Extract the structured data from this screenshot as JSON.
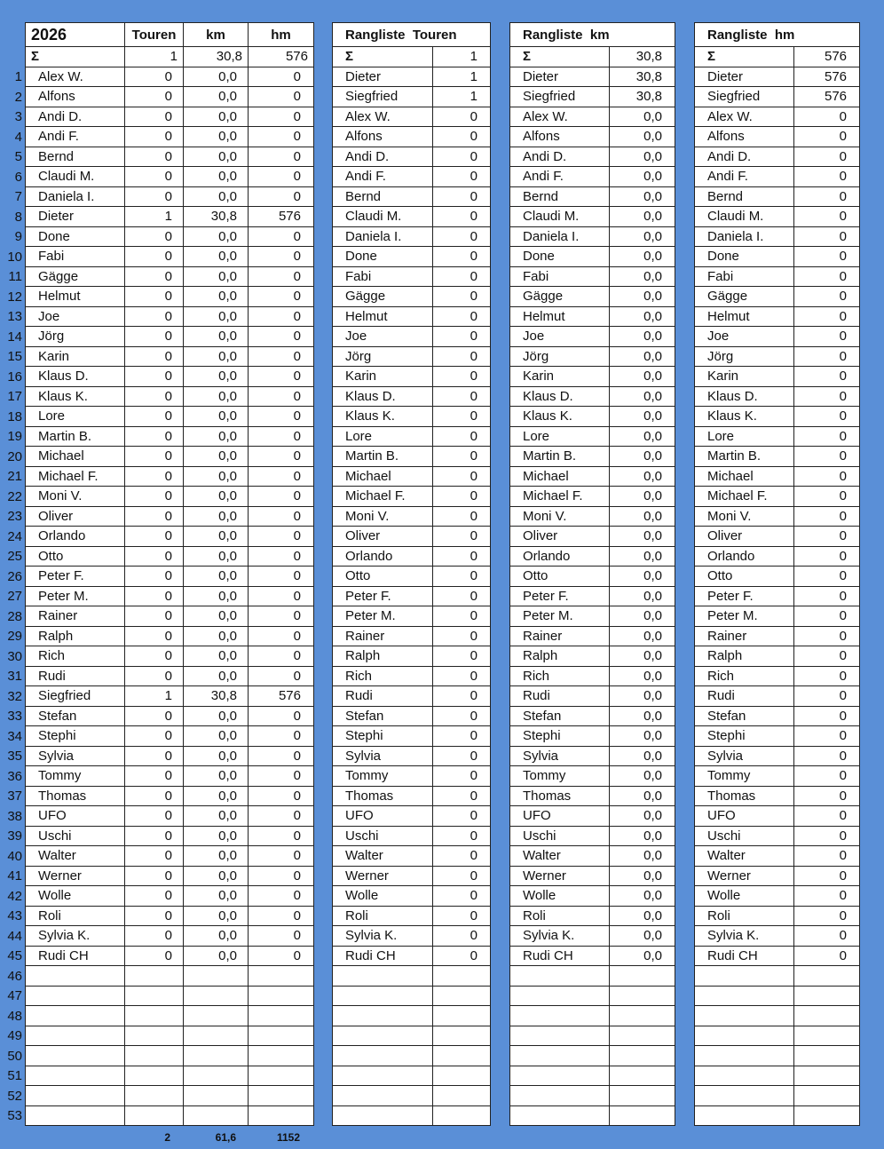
{
  "main": {
    "year": "2026",
    "headers": [
      "Touren",
      "km",
      "hm"
    ],
    "sum_label": "Σ",
    "sum": [
      "1",
      "30,8",
      "576"
    ],
    "names": [
      "Alex W.",
      "Alfons",
      "Andi D.",
      "Andi F.",
      "Bernd",
      "Claudi M.",
      "Daniela I.",
      "Dieter",
      "Done",
      "Fabi",
      "Gägge",
      "Helmut",
      "Joe",
      "Jörg",
      "Karin",
      "Klaus D.",
      "Klaus K.",
      "Lore",
      "Martin B.",
      "Michael",
      "Michael F.",
      "Moni V.",
      "Oliver",
      "Orlando",
      "Otto",
      "Peter F.",
      "Peter M.",
      "Rainer",
      "Ralph",
      "Rich",
      "Rudi",
      "Siegfried",
      "Stefan",
      "Stephi",
      "Sylvia",
      "Tommy",
      "Thomas",
      "UFO",
      "Uschi",
      "Walter",
      "Werner",
      "Wolle",
      "Roli",
      "Sylvia K.",
      "Rudi CH"
    ],
    "active": {
      "Dieter": [
        "1",
        "30,8",
        "576"
      ],
      "Siegfried": [
        "1",
        "30,8",
        "576"
      ]
    },
    "default_values": [
      "0",
      "0,0",
      "0"
    ],
    "row_count": 53,
    "totals": [
      "2",
      "61,6",
      "1152"
    ]
  },
  "rankings": [
    {
      "title": "Rangliste  Touren",
      "sum": "1",
      "top": [
        "1",
        "1"
      ],
      "default": "0"
    },
    {
      "title": "Rangliste  km",
      "sum": "30,8",
      "top": [
        "30,8",
        "30,8"
      ],
      "default": "0,0"
    },
    {
      "title": "Rangliste  hm",
      "sum": "576",
      "top": [
        "576",
        "576"
      ],
      "default": "0"
    }
  ],
  "ranking_order": [
    "Dieter",
    "Siegfried",
    "Alex W.",
    "Alfons",
    "Andi D.",
    "Andi F.",
    "Bernd",
    "Claudi M.",
    "Daniela I.",
    "Done",
    "Fabi",
    "Gägge",
    "Helmut",
    "Joe",
    "Jörg",
    "Karin",
    "Klaus D.",
    "Klaus K.",
    "Lore",
    "Martin B.",
    "Michael",
    "Michael F.",
    "Moni V.",
    "Oliver",
    "Orlando",
    "Otto",
    "Peter F.",
    "Peter M.",
    "Rainer",
    "Ralph",
    "Rich",
    "Rudi",
    "Stefan",
    "Stephi",
    "Sylvia",
    "Tommy",
    "Thomas",
    "UFO",
    "Uschi",
    "Walter",
    "Werner",
    "Wolle",
    "Roli",
    "Sylvia K.",
    "Rudi CH"
  ],
  "colors": {
    "background": "#5a8fd7",
    "cell": "#ffffff",
    "grid": "#222222"
  }
}
